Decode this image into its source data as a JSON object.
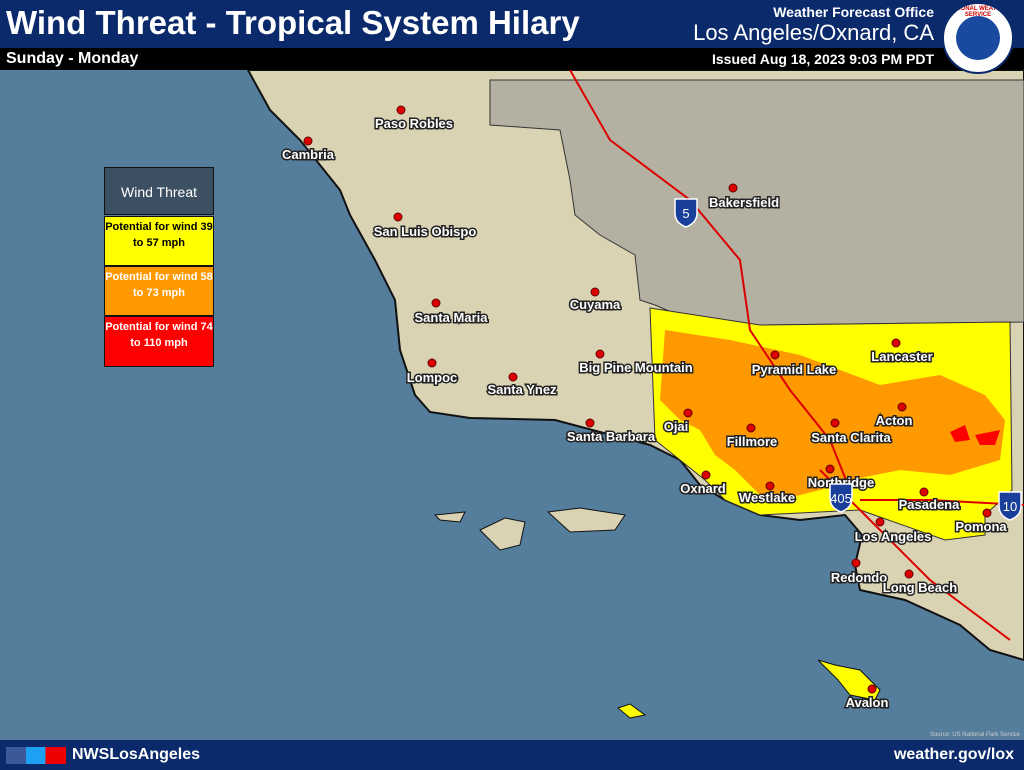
{
  "header": {
    "title": "Wind Threat - Tropical System Hilary",
    "subtitle": "Sunday - Monday",
    "office_label": "Weather Forecast Office",
    "office": "Los Angeles/Oxnard, CA",
    "issued": "Issued Aug 18, 2023 9:03 PM PDT",
    "logo_text": "NATIONAL WEATHER SERVICE"
  },
  "legend": {
    "title": "Wind Threat",
    "items": [
      "Potential for wind 39 to 57 mph",
      "Potential for wind 58 to 73 mph",
      "Potential for wind 74 to 110 mph"
    ]
  },
  "cities": [
    "Paso Robles",
    "Cambria",
    "San Luis Obispo",
    "Cuyama",
    "Santa Maria",
    "Big Pine Mountain",
    "Lompoc",
    "Santa Ynez",
    "Santa Barbara",
    "Ojai",
    "Fillmore",
    "Oxnard",
    "Westlake",
    "Bakersfield",
    "Pyramid Lake",
    "Lancaster",
    "Acton",
    "Santa Clarita",
    "Northridge",
    "Pasadena",
    "Pomona",
    "Los Angeles",
    "Redondo",
    "Long Beach",
    "Avalon"
  ],
  "highways": [
    "5",
    "405",
    "10"
  ],
  "source": "Source: US National Park Service",
  "footer": {
    "handle": "NWSLosAngeles",
    "url": "weather.gov/lox"
  }
}
